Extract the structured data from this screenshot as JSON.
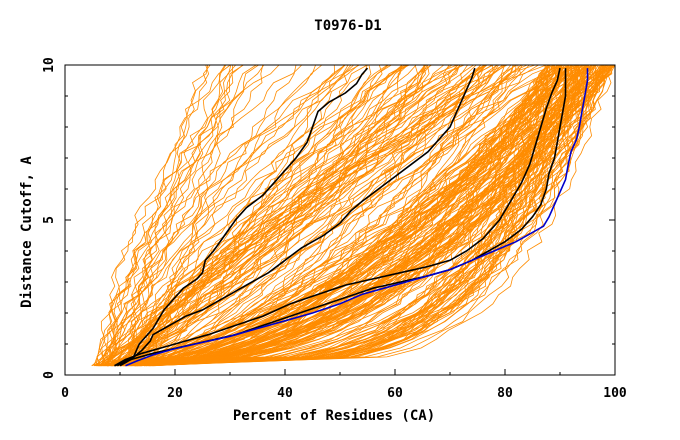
{
  "chart_data": {
    "type": "line",
    "title": "T0976-D1",
    "xlabel": "Percent of Residues (CA)",
    "ylabel": "Distance Cutoff, A",
    "xlim": [
      0,
      100
    ],
    "ylim": [
      0,
      10
    ],
    "x_ticks": [
      "0",
      "20",
      "40",
      "60",
      "80",
      "100"
    ],
    "y_ticks": [
      "0",
      "5",
      "10"
    ],
    "grid": false,
    "colors": {
      "orange": "#ff8c00",
      "black": "#000000",
      "blue": "#0000cc",
      "axis": "#000000"
    },
    "series": [
      {
        "color": "black",
        "points": [
          [
            9.5,
            0.3
          ],
          [
            11,
            0.45
          ],
          [
            12.5,
            0.6
          ],
          [
            13,
            0.8
          ],
          [
            13.5,
            1.0
          ],
          [
            15,
            1.3
          ],
          [
            16,
            1.5
          ],
          [
            17,
            1.8
          ],
          [
            18,
            2.1
          ],
          [
            20,
            2.5
          ],
          [
            21.5,
            2.8
          ],
          [
            24,
            3.1
          ],
          [
            25,
            3.3
          ],
          [
            25.5,
            3.7
          ],
          [
            27,
            4.0
          ],
          [
            29,
            4.5
          ],
          [
            31,
            5.0
          ],
          [
            33,
            5.4
          ],
          [
            36,
            5.8
          ],
          [
            38,
            6.2
          ],
          [
            40,
            6.6
          ],
          [
            42,
            7.0
          ],
          [
            44,
            7.5
          ],
          [
            45,
            8.0
          ],
          [
            46,
            8.5
          ],
          [
            48,
            8.8
          ],
          [
            51,
            9.1
          ],
          [
            53,
            9.4
          ],
          [
            54,
            9.7
          ],
          [
            55,
            9.9
          ]
        ]
      },
      {
        "color": "black",
        "points": [
          [
            10,
            0.3
          ],
          [
            12,
            0.5
          ],
          [
            14,
            0.8
          ],
          [
            15.5,
            1.1
          ],
          [
            16,
            1.3
          ],
          [
            18,
            1.5
          ],
          [
            20,
            1.7
          ],
          [
            22,
            1.9
          ],
          [
            25,
            2.1
          ],
          [
            28,
            2.4
          ],
          [
            31,
            2.7
          ],
          [
            34,
            3.0
          ],
          [
            37,
            3.3
          ],
          [
            40,
            3.7
          ],
          [
            43,
            4.1
          ],
          [
            47,
            4.5
          ],
          [
            50,
            4.9
          ],
          [
            52,
            5.3
          ],
          [
            54,
            5.6
          ],
          [
            57,
            6.0
          ],
          [
            60,
            6.4
          ],
          [
            63,
            6.8
          ],
          [
            66,
            7.2
          ],
          [
            68,
            7.6
          ],
          [
            70,
            8.0
          ],
          [
            71,
            8.4
          ],
          [
            72,
            8.8
          ],
          [
            73,
            9.2
          ],
          [
            74,
            9.6
          ],
          [
            74.5,
            9.9
          ]
        ]
      },
      {
        "color": "black",
        "points": [
          [
            9,
            0.3
          ],
          [
            11,
            0.5
          ],
          [
            14,
            0.7
          ],
          [
            18,
            0.9
          ],
          [
            22,
            1.1
          ],
          [
            26,
            1.3
          ],
          [
            31,
            1.6
          ],
          [
            36,
            1.9
          ],
          [
            41,
            2.3
          ],
          [
            46,
            2.6
          ],
          [
            51,
            2.9
          ],
          [
            56,
            3.1
          ],
          [
            61,
            3.3
          ],
          [
            66,
            3.5
          ],
          [
            70,
            3.7
          ],
          [
            73,
            4.0
          ],
          [
            76,
            4.4
          ],
          [
            79,
            5.0
          ],
          [
            81,
            5.6
          ],
          [
            83,
            6.2
          ],
          [
            84.5,
            6.8
          ],
          [
            85.5,
            7.4
          ],
          [
            86.5,
            8.0
          ],
          [
            87.5,
            8.6
          ],
          [
            88.5,
            9.1
          ],
          [
            89.5,
            9.5
          ],
          [
            90,
            9.9
          ]
        ]
      },
      {
        "color": "black",
        "points": [
          [
            9,
            0.3
          ],
          [
            12,
            0.5
          ],
          [
            16,
            0.7
          ],
          [
            21,
            0.9
          ],
          [
            26,
            1.1
          ],
          [
            31,
            1.3
          ],
          [
            36,
            1.6
          ],
          [
            41,
            1.9
          ],
          [
            46,
            2.2
          ],
          [
            51,
            2.5
          ],
          [
            56,
            2.8
          ],
          [
            61,
            3.0
          ],
          [
            66,
            3.2
          ],
          [
            70,
            3.4
          ],
          [
            74,
            3.7
          ],
          [
            77,
            4.0
          ],
          [
            80,
            4.3
          ],
          [
            83,
            4.7
          ],
          [
            85,
            5.1
          ],
          [
            86.5,
            5.5
          ],
          [
            87.5,
            6.0
          ],
          [
            88,
            6.5
          ],
          [
            89,
            7.0
          ],
          [
            89.5,
            7.5
          ],
          [
            90,
            8.0
          ],
          [
            90.5,
            8.5
          ],
          [
            91,
            9.0
          ],
          [
            91,
            9.5
          ],
          [
            91,
            9.9
          ]
        ]
      },
      {
        "color": "blue",
        "points": [
          [
            11,
            0.3
          ],
          [
            13,
            0.45
          ],
          [
            16,
            0.65
          ],
          [
            20,
            0.85
          ],
          [
            25,
            1.05
          ],
          [
            30,
            1.25
          ],
          [
            35,
            1.5
          ],
          [
            40,
            1.75
          ],
          [
            45,
            2.0
          ],
          [
            50,
            2.3
          ],
          [
            54,
            2.6
          ],
          [
            58,
            2.8
          ],
          [
            62,
            3.0
          ],
          [
            66,
            3.2
          ],
          [
            70,
            3.4
          ],
          [
            74,
            3.7
          ],
          [
            78,
            4.0
          ],
          [
            82,
            4.3
          ],
          [
            85,
            4.6
          ],
          [
            87,
            4.8
          ],
          [
            88,
            5.1
          ],
          [
            89,
            5.5
          ],
          [
            90,
            5.9
          ],
          [
            91,
            6.3
          ],
          [
            91.5,
            6.8
          ],
          [
            92,
            7.2
          ],
          [
            93,
            7.6
          ],
          [
            93.5,
            8.0
          ],
          [
            94,
            8.5
          ],
          [
            94.5,
            9.0
          ],
          [
            95,
            9.5
          ],
          [
            95,
            9.9
          ]
        ]
      }
    ]
  }
}
